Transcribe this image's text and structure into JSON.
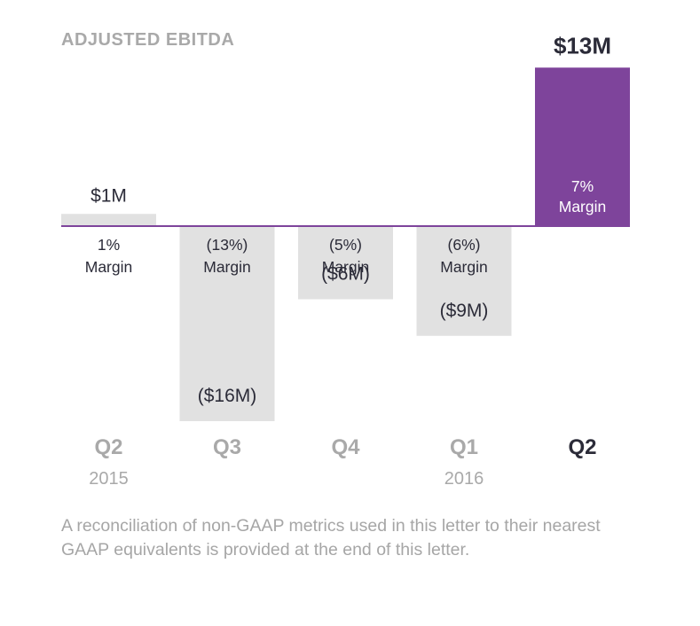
{
  "title": "ADJUSTED EBITDA",
  "colors": {
    "bar_default": "#e1e1e1",
    "bar_highlight": "#7e449b",
    "baseline": "#7e449b",
    "text_dark": "#2b2b38",
    "text_muted": "#a9a9a9",
    "text_on_highlight": "#ffffff"
  },
  "chart_data": {
    "type": "bar",
    "categories": [
      "Q2",
      "Q3",
      "Q4",
      "Q1",
      "Q2"
    ],
    "years": [
      "2015",
      "",
      "",
      "2016",
      ""
    ],
    "values": [
      1,
      -16,
      -6,
      -9,
      13
    ],
    "value_labels": [
      "$1M",
      "($16M)",
      "($6M)",
      "($9M)",
      "$13M"
    ],
    "margin_pct": [
      "1%",
      "(13%)",
      "(5%)",
      "(6%)",
      "7%"
    ],
    "margin_word": "Margin",
    "highlight_index": 4,
    "unit": "$M",
    "ylim": [
      -16,
      13
    ],
    "grid": false
  },
  "footnote": "A reconciliation of non-GAAP metrics used in this letter to their nearest GAAP equivalents is provided at the end of this letter."
}
